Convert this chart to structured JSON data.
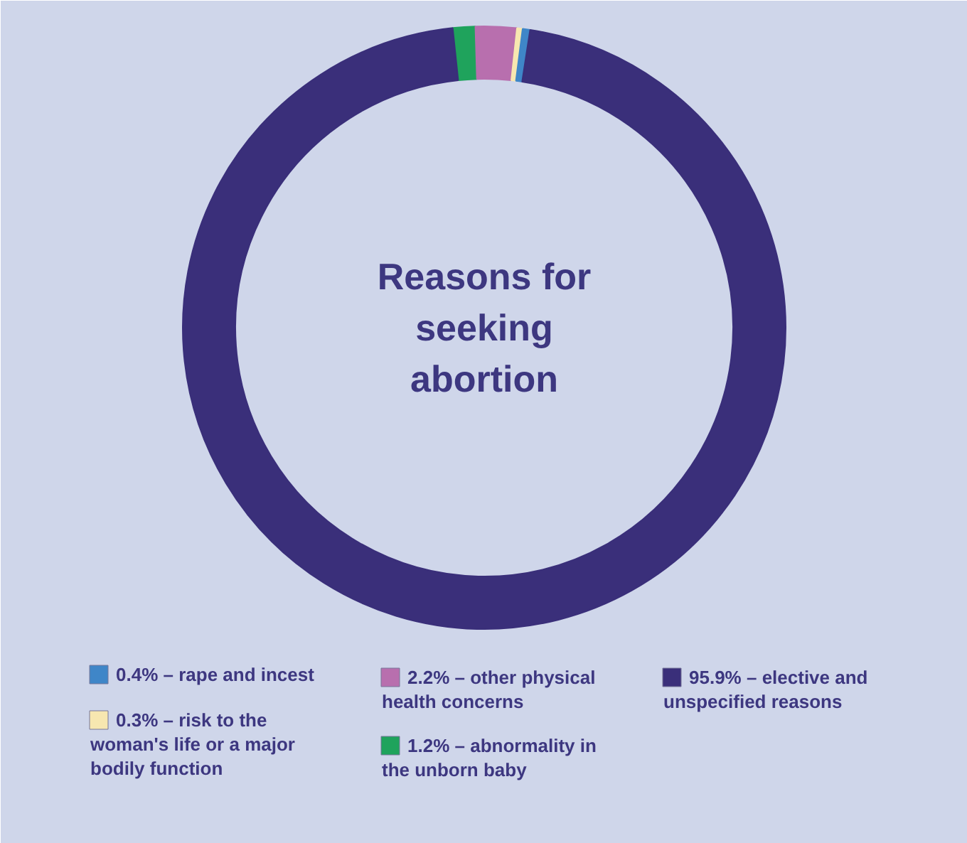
{
  "chart_data": {
    "type": "donut",
    "title": "Reasons for seeking abortion",
    "categories": [
      "1.2% – abnormality in the unborn baby",
      "2.2% – other physical health concerns",
      "0.3% – risk to the woman's life or a major bodily function",
      "0.4% – rape and incest",
      "95.9% – elective and unspecified reasons"
    ],
    "values": [
      1.2,
      2.2,
      0.3,
      0.4,
      95.9
    ],
    "colors": [
      "#1fa35c",
      "#b86fae",
      "#f7e7b0",
      "#3f86c8",
      "#3a2f7a"
    ],
    "legend": "bottom"
  }
}
